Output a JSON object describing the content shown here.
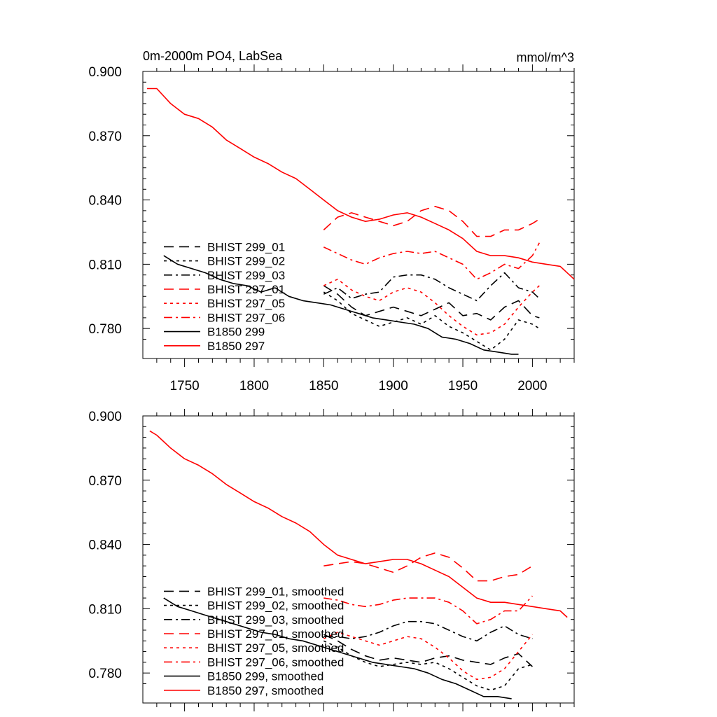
{
  "chart_data": [
    {
      "type": "line",
      "title": "0m-2000m PO4, LabSea",
      "units": "mmol/m^3",
      "xlim": [
        1720,
        2030
      ],
      "ylim": [
        0.766,
        0.9
      ],
      "xticks": [
        1750,
        1800,
        1850,
        1900,
        1950,
        2000
      ],
      "xtick_labels": [
        "1750",
        "1800",
        "1850",
        "1900",
        "1950",
        "2000"
      ],
      "yticks": [
        0.78,
        0.81,
        0.84,
        0.87,
        0.9
      ],
      "ytick_labels": [
        "0.780",
        "0.810",
        "0.840",
        "0.870",
        "0.900"
      ],
      "grid": false,
      "legend_position": "lower-left",
      "series": [
        {
          "name": "BHIST 299_01",
          "color": "#000000",
          "dash": "dashed",
          "x": [
            1850,
            1860,
            1870,
            1880,
            1890,
            1900,
            1910,
            1920,
            1930,
            1940,
            1950,
            1960,
            1970,
            1980,
            1990,
            2000,
            2005
          ],
          "y": [
            0.8,
            0.796,
            0.79,
            0.786,
            0.788,
            0.79,
            0.788,
            0.786,
            0.789,
            0.792,
            0.786,
            0.787,
            0.784,
            0.79,
            0.793,
            0.786,
            0.785
          ]
        },
        {
          "name": "BHIST 299_02",
          "color": "#000000",
          "dash": "dotted",
          "x": [
            1850,
            1860,
            1870,
            1880,
            1890,
            1900,
            1910,
            1920,
            1930,
            1940,
            1950,
            1960,
            1970,
            1980,
            1990,
            2000,
            2005
          ],
          "y": [
            0.797,
            0.793,
            0.787,
            0.784,
            0.781,
            0.783,
            0.785,
            0.782,
            0.786,
            0.781,
            0.778,
            0.774,
            0.77,
            0.775,
            0.784,
            0.782,
            0.78
          ]
        },
        {
          "name": "BHIST 299_03",
          "color": "#000000",
          "dash": "dashdot",
          "x": [
            1850,
            1860,
            1870,
            1880,
            1890,
            1900,
            1910,
            1920,
            1930,
            1940,
            1950,
            1960,
            1970,
            1980,
            1990,
            2000,
            2005
          ],
          "y": [
            0.796,
            0.799,
            0.794,
            0.796,
            0.797,
            0.804,
            0.805,
            0.805,
            0.803,
            0.799,
            0.796,
            0.793,
            0.8,
            0.806,
            0.799,
            0.797,
            0.794
          ]
        },
        {
          "name": "BHIST 297_01",
          "color": "#ff0000",
          "dash": "dashed",
          "x": [
            1850,
            1860,
            1870,
            1880,
            1890,
            1900,
            1910,
            1920,
            1930,
            1940,
            1950,
            1960,
            1970,
            1980,
            1990,
            2000,
            2005
          ],
          "y": [
            0.826,
            0.832,
            0.834,
            0.832,
            0.83,
            0.828,
            0.83,
            0.835,
            0.837,
            0.835,
            0.83,
            0.823,
            0.823,
            0.826,
            0.826,
            0.829,
            0.831
          ]
        },
        {
          "name": "BHIST 297_05",
          "color": "#ff0000",
          "dash": "dotted",
          "x": [
            1850,
            1860,
            1870,
            1880,
            1890,
            1900,
            1910,
            1920,
            1930,
            1940,
            1950,
            1960,
            1970,
            1980,
            1990,
            2000,
            2005
          ],
          "y": [
            0.8,
            0.803,
            0.798,
            0.795,
            0.793,
            0.797,
            0.799,
            0.797,
            0.792,
            0.786,
            0.781,
            0.777,
            0.778,
            0.782,
            0.79,
            0.797,
            0.8
          ]
        },
        {
          "name": "BHIST 297_06",
          "color": "#ff0000",
          "dash": "dashdot",
          "x": [
            1850,
            1860,
            1870,
            1880,
            1890,
            1900,
            1910,
            1920,
            1930,
            1940,
            1950,
            1960,
            1970,
            1980,
            1990,
            2000,
            2005
          ],
          "y": [
            0.818,
            0.815,
            0.812,
            0.81,
            0.813,
            0.815,
            0.816,
            0.815,
            0.816,
            0.813,
            0.81,
            0.803,
            0.806,
            0.81,
            0.808,
            0.814,
            0.82
          ]
        },
        {
          "name": "B1850 299",
          "color": "#000000",
          "dash": "solid",
          "x": [
            1735,
            1745,
            1755,
            1765,
            1775,
            1785,
            1795,
            1805,
            1815,
            1825,
            1835,
            1845,
            1855,
            1865,
            1875,
            1885,
            1895,
            1905,
            1915,
            1925,
            1935,
            1945,
            1955,
            1965,
            1975,
            1985,
            1990
          ],
          "y": [
            0.814,
            0.81,
            0.808,
            0.806,
            0.803,
            0.801,
            0.8,
            0.797,
            0.799,
            0.795,
            0.793,
            0.792,
            0.791,
            0.789,
            0.787,
            0.785,
            0.784,
            0.783,
            0.782,
            0.78,
            0.776,
            0.775,
            0.773,
            0.77,
            0.769,
            0.768,
            0.768
          ]
        },
        {
          "name": "B1850 297",
          "color": "#ff0000",
          "dash": "solid",
          "x": [
            1723,
            1730,
            1740,
            1750,
            1760,
            1770,
            1780,
            1790,
            1800,
            1810,
            1820,
            1830,
            1840,
            1850,
            1860,
            1870,
            1880,
            1890,
            1900,
            1910,
            1920,
            1930,
            1940,
            1950,
            1960,
            1970,
            1980,
            1990,
            2000,
            2010,
            2020,
            2030
          ],
          "y": [
            0.892,
            0.892,
            0.885,
            0.88,
            0.878,
            0.874,
            0.868,
            0.864,
            0.86,
            0.857,
            0.853,
            0.85,
            0.845,
            0.84,
            0.835,
            0.832,
            0.83,
            0.831,
            0.833,
            0.834,
            0.832,
            0.829,
            0.826,
            0.822,
            0.816,
            0.814,
            0.814,
            0.813,
            0.811,
            0.81,
            0.809,
            0.803
          ]
        }
      ]
    },
    {
      "type": "line",
      "title": "",
      "units": "",
      "xlim": [
        1720,
        2030
      ],
      "ylim": [
        0.766,
        0.9
      ],
      "xticks": [
        1750,
        1800,
        1850,
        1900,
        1950,
        2000
      ],
      "xtick_labels": [],
      "yticks": [
        0.78,
        0.81,
        0.84,
        0.87,
        0.9
      ],
      "ytick_labels": [
        "0.780",
        "0.810",
        "0.840",
        "0.870",
        "0.900"
      ],
      "grid": false,
      "legend_position": "lower-left",
      "series": [
        {
          "name": "BHIST 299_01, smoothed",
          "color": "#000000",
          "dash": "dashed",
          "x": [
            1850,
            1860,
            1870,
            1880,
            1890,
            1900,
            1910,
            1920,
            1930,
            1940,
            1950,
            1960,
            1970,
            1980,
            1990,
            2000
          ],
          "y": [
            0.798,
            0.795,
            0.791,
            0.788,
            0.786,
            0.787,
            0.786,
            0.785,
            0.787,
            0.788,
            0.786,
            0.785,
            0.784,
            0.787,
            0.789,
            0.783
          ]
        },
        {
          "name": "BHIST 299_02, smoothed",
          "color": "#000000",
          "dash": "dotted",
          "x": [
            1850,
            1860,
            1870,
            1880,
            1890,
            1900,
            1910,
            1920,
            1930,
            1940,
            1950,
            1960,
            1970,
            1980,
            1990,
            2000
          ],
          "y": [
            0.795,
            0.792,
            0.788,
            0.785,
            0.783,
            0.784,
            0.785,
            0.784,
            0.785,
            0.782,
            0.778,
            0.774,
            0.772,
            0.774,
            0.782,
            0.784
          ]
        },
        {
          "name": "BHIST 299_03, smoothed",
          "color": "#000000",
          "dash": "dashdot",
          "x": [
            1850,
            1860,
            1870,
            1880,
            1890,
            1900,
            1910,
            1920,
            1930,
            1940,
            1950,
            1960,
            1970,
            1980,
            1990,
            2000
          ],
          "y": [
            0.797,
            0.797,
            0.796,
            0.797,
            0.799,
            0.802,
            0.804,
            0.804,
            0.803,
            0.8,
            0.797,
            0.795,
            0.799,
            0.802,
            0.798,
            0.796
          ]
        },
        {
          "name": "BHIST 297_01, smoothed",
          "color": "#ff0000",
          "dash": "dashed",
          "x": [
            1850,
            1860,
            1870,
            1880,
            1890,
            1900,
            1910,
            1920,
            1930,
            1940,
            1950,
            1960,
            1970,
            1980,
            1990,
            2000
          ],
          "y": [
            0.83,
            0.831,
            0.832,
            0.831,
            0.829,
            0.827,
            0.83,
            0.834,
            0.836,
            0.834,
            0.829,
            0.823,
            0.823,
            0.825,
            0.826,
            0.83
          ]
        },
        {
          "name": "BHIST 297_05, smoothed",
          "color": "#ff0000",
          "dash": "dotted",
          "x": [
            1850,
            1860,
            1870,
            1880,
            1890,
            1900,
            1910,
            1920,
            1930,
            1940,
            1950,
            1960,
            1970,
            1980,
            1990,
            2000
          ],
          "y": [
            0.796,
            0.799,
            0.797,
            0.795,
            0.793,
            0.795,
            0.797,
            0.796,
            0.792,
            0.787,
            0.781,
            0.777,
            0.778,
            0.782,
            0.79,
            0.798
          ]
        },
        {
          "name": "BHIST 297_06, smoothed",
          "color": "#ff0000",
          "dash": "dashdot",
          "x": [
            1850,
            1860,
            1870,
            1880,
            1890,
            1900,
            1910,
            1920,
            1930,
            1940,
            1950,
            1960,
            1970,
            1980,
            1990,
            2000
          ],
          "y": [
            0.815,
            0.814,
            0.812,
            0.811,
            0.812,
            0.814,
            0.815,
            0.815,
            0.815,
            0.813,
            0.809,
            0.803,
            0.805,
            0.809,
            0.809,
            0.816
          ]
        },
        {
          "name": "B1850 299, smoothed",
          "color": "#000000",
          "dash": "solid",
          "x": [
            1735,
            1745,
            1755,
            1765,
            1775,
            1785,
            1795,
            1805,
            1815,
            1825,
            1835,
            1845,
            1855,
            1865,
            1875,
            1885,
            1895,
            1905,
            1915,
            1925,
            1935,
            1945,
            1955,
            1965,
            1975,
            1985
          ],
          "y": [
            0.815,
            0.811,
            0.809,
            0.807,
            0.805,
            0.803,
            0.801,
            0.799,
            0.798,
            0.796,
            0.795,
            0.793,
            0.791,
            0.789,
            0.787,
            0.785,
            0.784,
            0.783,
            0.782,
            0.78,
            0.777,
            0.775,
            0.772,
            0.769,
            0.769,
            0.768
          ]
        },
        {
          "name": "B1850 297, smoothed",
          "color": "#ff0000",
          "dash": "solid",
          "x": [
            1725,
            1730,
            1740,
            1750,
            1760,
            1770,
            1780,
            1790,
            1800,
            1810,
            1820,
            1830,
            1840,
            1850,
            1860,
            1870,
            1880,
            1890,
            1900,
            1910,
            1920,
            1930,
            1940,
            1950,
            1960,
            1970,
            1980,
            1990,
            2000,
            2010,
            2020,
            2025
          ],
          "y": [
            0.893,
            0.891,
            0.885,
            0.88,
            0.877,
            0.873,
            0.868,
            0.864,
            0.86,
            0.857,
            0.853,
            0.85,
            0.846,
            0.84,
            0.835,
            0.833,
            0.831,
            0.832,
            0.833,
            0.833,
            0.831,
            0.828,
            0.825,
            0.82,
            0.815,
            0.813,
            0.813,
            0.812,
            0.811,
            0.81,
            0.809,
            0.806
          ]
        }
      ]
    }
  ]
}
